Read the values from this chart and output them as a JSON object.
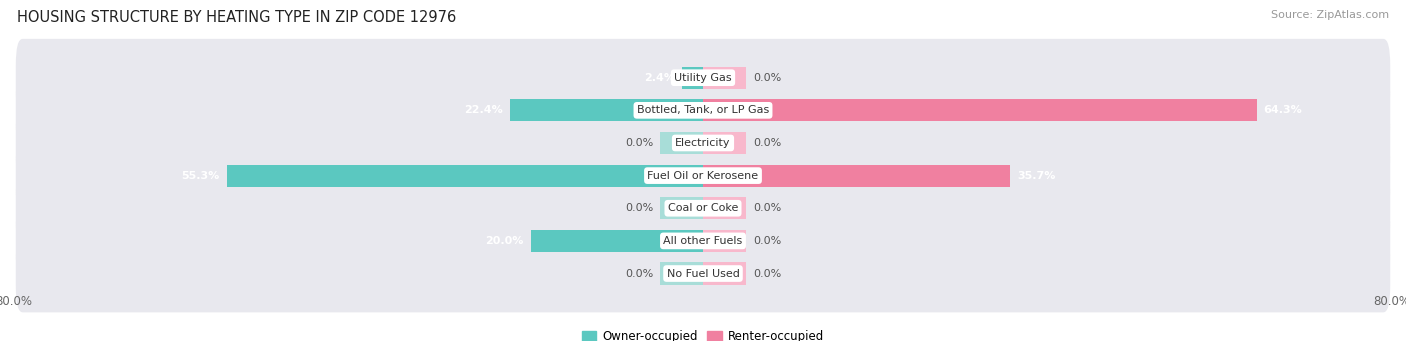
{
  "title": "HOUSING STRUCTURE BY HEATING TYPE IN ZIP CODE 12976",
  "source": "Source: ZipAtlas.com",
  "categories": [
    "Utility Gas",
    "Bottled, Tank, or LP Gas",
    "Electricity",
    "Fuel Oil or Kerosene",
    "Coal or Coke",
    "All other Fuels",
    "No Fuel Used"
  ],
  "owner_values": [
    2.4,
    22.4,
    0.0,
    55.3,
    0.0,
    20.0,
    0.0
  ],
  "renter_values": [
    0.0,
    64.3,
    0.0,
    35.7,
    0.0,
    0.0,
    0.0
  ],
  "owner_color": "#5BC8C0",
  "renter_color": "#F080A0",
  "owner_color_light": "#A8DDD8",
  "renter_color_light": "#F8B8CC",
  "background_color": "#ffffff",
  "bar_bg_color": "#e8e8ee",
  "x_min": -80.0,
  "x_max": 80.0,
  "stub_value": 5.0,
  "title_fontsize": 10.5,
  "source_fontsize": 8,
  "label_fontsize": 8.5,
  "cat_label_fontsize": 8,
  "bar_label_fontsize": 8,
  "legend_fontsize": 8.5
}
